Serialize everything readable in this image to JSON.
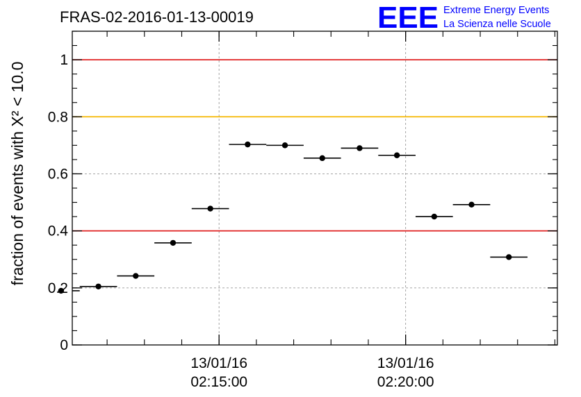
{
  "chart_data": {
    "type": "scatter",
    "title": "FRAS-02-2016-01-13-00019",
    "ylabel": "fraction of events with X² < 10.0",
    "ylim": [
      0,
      1.1
    ],
    "yticks": [
      "0",
      "0.2",
      "0.4",
      "0.6",
      "0.8",
      "1"
    ],
    "xticks": [
      {
        "date": "13/01/16",
        "time": "02:15:00"
      },
      {
        "date": "13/01/16",
        "time": "02:20:00"
      }
    ],
    "reference_lines": [
      {
        "y": 1.0,
        "color": "#e02020"
      },
      {
        "y": 0.8,
        "color": "#f5b800"
      },
      {
        "y": 0.4,
        "color": "#e02020"
      }
    ],
    "points": [
      {
        "time": "02:10:46",
        "y": 0.19
      },
      {
        "time": "02:11:46",
        "y": 0.205
      },
      {
        "time": "02:12:46",
        "y": 0.242
      },
      {
        "time": "02:13:46",
        "y": 0.358
      },
      {
        "time": "02:14:46",
        "y": 0.478
      },
      {
        "time": "02:15:46",
        "y": 0.703
      },
      {
        "time": "02:16:46",
        "y": 0.7
      },
      {
        "time": "02:17:46",
        "y": 0.655
      },
      {
        "time": "02:18:46",
        "y": 0.69
      },
      {
        "time": "02:19:46",
        "y": 0.665
      },
      {
        "time": "02:20:46",
        "y": 0.45
      },
      {
        "time": "02:21:46",
        "y": 0.492
      },
      {
        "time": "02:22:46",
        "y": 0.308
      }
    ],
    "bin_width_min": 1.0,
    "xrange": [
      "02:11:04",
      "02:24:04"
    ],
    "grid": true
  },
  "logo": {
    "mark": "EEE",
    "line1": "Extreme Energy Events",
    "line2": "La Scienza nelle Scuole",
    "color": "#0000ff"
  }
}
